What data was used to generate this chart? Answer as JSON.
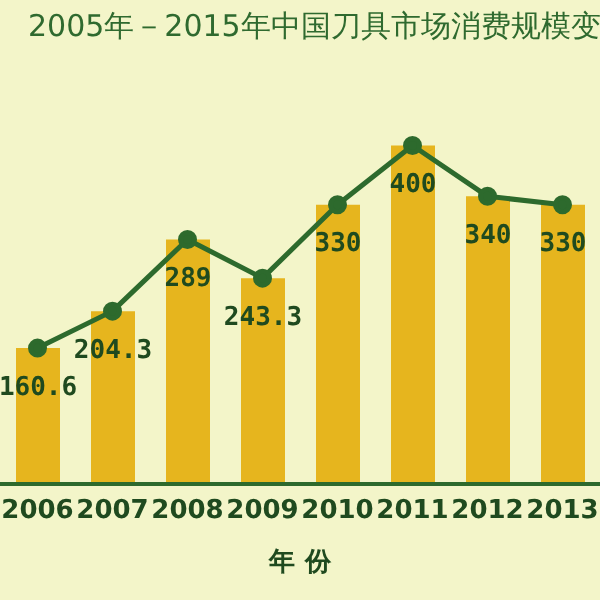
{
  "chart_data": {
    "type": "bar",
    "title": "2005年－2015年中国刀具市场消费规模变",
    "xlabel": "年 份",
    "categories": [
      "2006",
      "2007",
      "2008",
      "2009",
      "2010",
      "2011",
      "2012",
      "2013"
    ],
    "series": [
      {
        "color": "#e6b51e",
        "values": [
          160.6,
          204.3,
          289,
          243.3,
          330,
          400,
          340,
          330
        ],
        "value_labels": [
          "160.6",
          "204.3",
          "289",
          "243.3",
          "330",
          "400",
          "340",
          "330"
        ]
      },
      {
        "type": "line",
        "color": "#2d6a2d",
        "values": [
          160.6,
          204.3,
          289,
          243.3,
          330,
          400,
          340,
          330
        ]
      }
    ],
    "marker": "circle",
    "grid": false,
    "legend": false
  }
}
